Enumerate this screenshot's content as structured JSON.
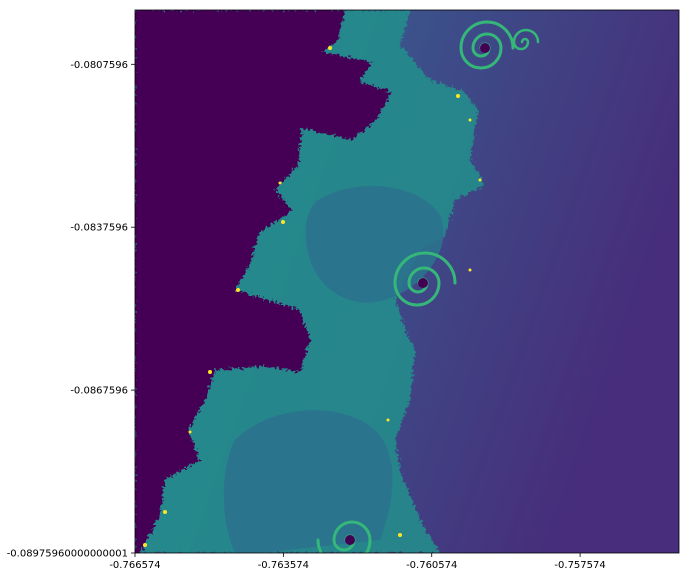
{
  "chart_data": {
    "type": "heatmap",
    "title": "",
    "xlabel": "",
    "ylabel": "",
    "xlim": [
      -0.766574,
      -0.755574
    ],
    "ylim": [
      -0.08975960000000001,
      -0.0797596
    ],
    "x_ticks": [
      {
        "value": -0.766574,
        "label": "-0.766574"
      },
      {
        "value": -0.763574,
        "label": "-0.763574"
      },
      {
        "value": -0.760574,
        "label": "-0.760574"
      },
      {
        "value": -0.757574,
        "label": "-0.757574"
      }
    ],
    "y_ticks": [
      {
        "value": -0.0807596,
        "label": "-0.0807596"
      },
      {
        "value": -0.0837596,
        "label": "-0.0837596"
      },
      {
        "value": -0.0867596,
        "label": "-0.0867596"
      },
      {
        "value": -0.08975960000000001,
        "label": "-0.08975960000000001"
      }
    ],
    "colormap": "viridis",
    "colors": {
      "inside_set": "#440154",
      "background_gradient": [
        "#31688e",
        "#472d7b"
      ],
      "edge_filament": "#21918c",
      "edge_bright": "#35b779",
      "edge_highlight": "#fde725"
    },
    "grid": false,
    "legend": "none"
  }
}
